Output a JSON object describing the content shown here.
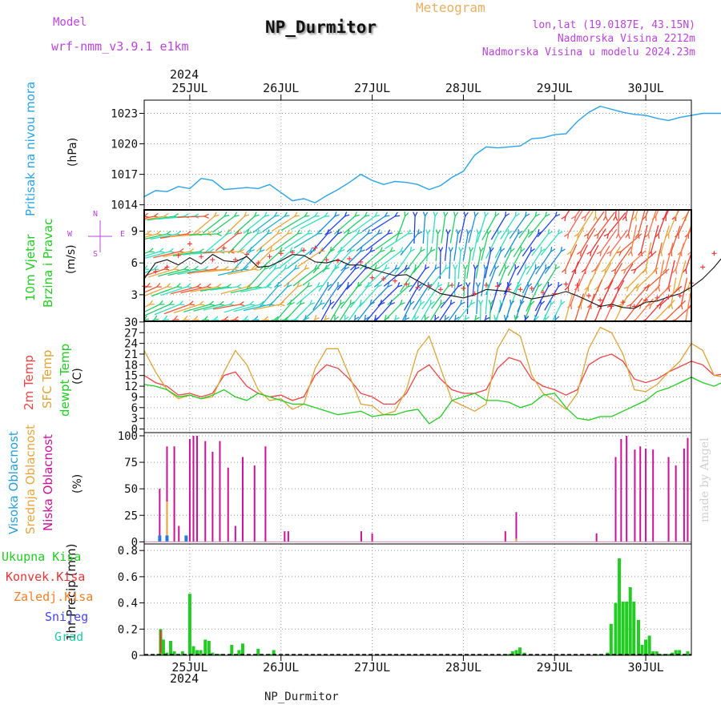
{
  "header": {
    "meteogram": "Meteogram",
    "station_title": "NP_Durmitor",
    "model_label": "Model",
    "model_name": "wrf-nmm_v3.9.1 e1km",
    "lonlat": "lon,lat (19.0187E, 43.15N)",
    "altitude": "Nadmorska Visina 2212m",
    "model_altitude": "Nadmorska Visina u modelu 2024.23m",
    "footer_name": "NP_Durmitor",
    "credit": "made by Angel"
  },
  "colors": {
    "pressure": "#2aa4e6",
    "temp2m": "#ee4444",
    "sfc": "#dda43a",
    "dewpt": "#22cc22",
    "purple": "#bb44dd",
    "low_cloud": "#cc1199",
    "mid_cloud": "#e8a63c",
    "high_cloud": "#2a79d8",
    "total_precip": "#22cc22",
    "conv": "#ee3333",
    "frozen": "#f07d26",
    "snow": "#4444ee",
    "graupel": "#22ccaa"
  },
  "chart_data": [
    {
      "type": "line",
      "panel": "pressure",
      "ylabel": [
        "Pritisak na nivou mora",
        "(hPa)"
      ],
      "ylim": [
        1013.5,
        1024.3
      ],
      "yticks": [
        1014,
        1017,
        1020,
        1023
      ],
      "grid": true,
      "x_ticks": [
        "25JUL",
        "26JUL",
        "27JUL",
        "28JUL",
        "29JUL",
        "30JUL"
      ],
      "x_year": "2024",
      "x_start": 0.5,
      "x_step_hours": 3,
      "x_unit": "day",
      "series": [
        {
          "values": [
            1014.8,
            1015.4,
            1015.3,
            1015.8,
            1015.6,
            1016.6,
            1016.4,
            1015.5,
            1015.6,
            1015.7,
            1015.6,
            1016.0,
            1015.2,
            1014.4,
            1014.6,
            1014.2,
            1014.9,
            1015.5,
            1016.2,
            1017.0,
            1016.4,
            1016.0,
            1016.3,
            1016.2,
            1016.0,
            1015.5,
            1015.9,
            1016.7,
            1017.3,
            1018.9,
            1019.7,
            1019.6,
            1019.7,
            1019.8,
            1020.5,
            1020.6,
            1020.9,
            1021.0,
            1022.2,
            1023.1,
            1023.7,
            1023.4,
            1023.1,
            1022.9,
            1022.8,
            1022.5,
            1022.3,
            1022.6,
            1022.8,
            1023.0,
            1023.0,
            1023.0,
            1022.7,
            1022.8,
            1022.7,
            1022.2,
            1022.0,
            1022.6,
            1022.0,
            1021.9,
            1022.1,
            1021.8,
            1021.5,
            1020.9,
            1020.2
          ]
        }
      ]
    },
    {
      "type": "scatter",
      "panel": "wind",
      "ylabel": [
        "10m Vjetar",
        "Brzina i Pravac",
        "(m/s)"
      ],
      "ylim": [
        0.5,
        11.0
      ],
      "yticks": [
        3,
        6,
        9
      ],
      "grid": true,
      "compass": [
        "N",
        "E",
        "S",
        "W"
      ],
      "series": [
        {
          "name": "speed",
          "values": [
            4.5,
            6.0,
            6.3,
            5.8,
            6.5,
            5.9,
            6.8,
            6.2,
            6.1,
            6.6,
            5.6,
            5.7,
            6.2,
            6.8,
            6.7,
            6.1,
            6.0,
            6.3,
            5.8,
            5.8,
            5.4,
            5.1,
            4.8,
            4.9,
            4.3,
            3.7,
            3.1,
            2.9,
            2.7,
            3.0,
            3.5,
            3.4,
            3.3,
            2.9,
            2.6,
            2.8,
            3.0,
            3.3,
            2.9,
            2.4,
            1.9,
            2.1,
            1.8,
            1.7,
            2.3,
            2.4,
            2.8,
            3.1,
            3.7,
            4.5,
            5.6,
            6.9,
            8.0,
            7.5,
            7.2,
            7.3,
            7.1,
            7.4,
            7.1,
            6.9,
            7.4,
            7.6,
            8.0,
            7.2,
            7.0
          ]
        },
        {
          "name": "gust",
          "values": [
            3.8,
            5.2,
            5.6,
            6.7,
            7.8,
            6.6,
            6.3,
            7.4,
            6.3,
            6.8,
            6.0,
            6.6,
            6.9,
            7.0,
            7.2,
            7.4,
            6.3,
            6.2,
            6.4,
            6.1,
            4.6,
            4.5,
            4.3,
            4.0,
            3.7,
            3.8,
            3.5,
            3.9,
            3.6,
            3.1,
            3.9,
            3.8,
            3.5,
            3.5,
            3.6,
            3.2,
            3.1,
            4.0,
            3.9,
            2.9,
            2.5,
            1.9,
            2.3,
            1.9,
            2.5,
            2.7,
            2.8,
            2.9,
            4.1,
            5.6,
            6.9,
            8.0,
            9.2,
            9.2,
            8.9,
            8.7,
            8.5,
            8.4,
            8.4,
            7.5,
            7.4,
            7.0,
            6.6,
            7.0,
            6.4
          ]
        }
      ]
    },
    {
      "type": "line",
      "panel": "temperature",
      "ylabel": [
        "2m Temp",
        "SFC Temp",
        "dewpt Temp",
        "(C)"
      ],
      "ylim": [
        -1,
        30.2
      ],
      "yticks": [
        0,
        3,
        6,
        9,
        12,
        15,
        18,
        21,
        24,
        27,
        30
      ],
      "grid": true,
      "series": [
        {
          "name": "2m Temp",
          "values": [
            15.0,
            13.0,
            12.0,
            9.5,
            10.0,
            9.0,
            10.0,
            15.0,
            16.0,
            12.0,
            10.0,
            9.0,
            9.5,
            8.0,
            9.0,
            15.0,
            18.0,
            17.0,
            14.0,
            10.0,
            9.0,
            7.0,
            7.0,
            10.0,
            16.0,
            18.0,
            14.0,
            11.0,
            10.0,
            10.0,
            11.0,
            17.0,
            20.0,
            19.0,
            14.0,
            12.0,
            11.0,
            9.5,
            11.0,
            18.0,
            20.0,
            21.0,
            19.0,
            14.0,
            13.0,
            14.0,
            16.0,
            17.5,
            19.0,
            18.0,
            15.0,
            15.5,
            17.0,
            17.5,
            18.5,
            16.5,
            15.0,
            15.5,
            13.5,
            12.0,
            11.0,
            10.5,
            12.5,
            14.5,
            16.5
          ]
        },
        {
          "name": "SFC Temp",
          "values": [
            22.0,
            16.0,
            11.0,
            8.5,
            9.5,
            8.5,
            9.0,
            16.0,
            22.0,
            18.0,
            11.0,
            8.0,
            8.5,
            5.5,
            7.0,
            17.0,
            22.5,
            22.5,
            15.0,
            7.0,
            6.5,
            4.0,
            5.0,
            11.0,
            22.0,
            26.0,
            17.0,
            8.0,
            6.5,
            5.0,
            7.0,
            22.5,
            28.0,
            26.0,
            15.0,
            10.0,
            8.0,
            5.5,
            10.0,
            22.5,
            28.5,
            27.0,
            21.0,
            11.0,
            10.5,
            12.5,
            16.0,
            19.0,
            24.0,
            22.0,
            15.0,
            14.5,
            17.0,
            22.0,
            24.0,
            20.0,
            16.0,
            14.5,
            12.5,
            11.5,
            10.5,
            10.0,
            15.5,
            21.0,
            24.0
          ]
        },
        {
          "name": "dewpt Temp",
          "values": [
            12.5,
            12.0,
            11.0,
            9.0,
            9.5,
            8.5,
            9.5,
            11.0,
            9.0,
            8.0,
            10.0,
            9.0,
            8.0,
            7.0,
            7.0,
            6.0,
            5.0,
            4.0,
            4.5,
            5.0,
            3.5,
            4.0,
            4.0,
            5.0,
            5.5,
            1.5,
            3.5,
            8.0,
            9.0,
            10.0,
            8.0,
            8.0,
            7.5,
            6.0,
            7.0,
            9.5,
            10.0,
            6.0,
            3.0,
            2.5,
            3.5,
            3.5,
            5.0,
            6.5,
            8.0,
            10.5,
            11.5,
            13.0,
            14.5,
            13.0,
            12.0,
            13.5,
            14.0,
            13.0,
            13.5,
            15.0,
            15.5,
            14.5,
            13.0,
            11.5,
            11.0,
            10.0,
            10.5,
            11.0,
            10.5
          ]
        }
      ]
    },
    {
      "type": "bar",
      "panel": "cloud",
      "ylabel": [
        "Visoka Oblacnost",
        "Srednja Oblacnost",
        "Niska Oblacnost",
        "(%)"
      ],
      "ylim": [
        -2,
        103
      ],
      "yticks": [
        0,
        25,
        50,
        75,
        100
      ],
      "grid": true,
      "series": [
        {
          "name": "Niska Oblacnost",
          "x": [
            24.67,
            24.75,
            24.83,
            24.88,
            25.0,
            25.04,
            25.08,
            25.17,
            25.25,
            25.33,
            25.42,
            25.5,
            25.58,
            25.71,
            25.83,
            26.04,
            26.08,
            26.88,
            27.0,
            28.46,
            28.58,
            29.46,
            29.67,
            29.73,
            29.79,
            29.88,
            29.94,
            30.0,
            30.08,
            30.25,
            30.33,
            30.42,
            30.46
          ],
          "values": [
            50,
            90,
            90,
            15,
            97,
            100,
            100,
            95,
            85,
            95,
            70,
            15,
            80,
            72,
            90,
            10,
            10,
            10,
            8,
            10,
            28,
            8,
            80,
            97,
            100,
            87,
            90,
            88,
            87,
            80,
            72,
            88,
            98
          ]
        },
        {
          "name": "Srednja Oblacnost",
          "x": [
            24.67,
            24.75,
            24.96,
            28.58
          ],
          "values": [
            5,
            38,
            5,
            3
          ]
        },
        {
          "name": "Visoka Oblacnost",
          "x": [
            24.67,
            24.75,
            24.96
          ],
          "values": [
            6,
            6,
            6
          ]
        }
      ]
    },
    {
      "type": "bar",
      "panel": "precip",
      "ylabel": [
        "1hr Precip (mm)"
      ],
      "ylim": [
        0,
        0.85
      ],
      "yticks": [
        0,
        0.2,
        0.4,
        0.6,
        0.8
      ],
      "grid": true,
      "legend": [
        "Ukupna Kisa",
        "Konvek.Kisa",
        "Zaledj.Kisa",
        "Snijeg",
        "Grad"
      ],
      "series": [
        {
          "name": "Ukupna Kisa",
          "x": [
            24.65,
            24.68,
            24.71,
            24.75,
            24.79,
            24.83,
            24.92,
            25.0,
            25.04,
            25.08,
            25.12,
            25.17,
            25.21,
            25.25,
            25.33,
            25.46,
            25.54,
            25.58,
            25.75,
            25.79,
            25.88,
            25.92,
            28.5,
            28.54,
            28.58,
            28.62,
            28.67,
            29.46,
            29.58,
            29.62,
            29.67,
            29.71,
            29.75,
            29.79,
            29.83,
            29.87,
            29.92,
            29.96,
            30.0,
            30.04,
            30.08,
            30.12,
            30.17,
            30.25,
            30.29,
            30.33,
            30.37,
            30.42,
            30.46
          ],
          "values": [
            0.01,
            0.2,
            0.12,
            0.02,
            0.11,
            0.03,
            0.03,
            0.47,
            0.07,
            0.04,
            0.04,
            0.12,
            0.11,
            0.02,
            0.01,
            0.08,
            0.04,
            0.09,
            0.05,
            0.01,
            0.01,
            0.04,
            0.01,
            0.03,
            0.04,
            0.06,
            0.02,
            0.01,
            0.02,
            0.24,
            0.4,
            0.74,
            0.41,
            0.41,
            0.52,
            0.41,
            0.27,
            0.08,
            0.12,
            0.15,
            0.03,
            0.03,
            0.01,
            0.01,
            0.02,
            0.04,
            0.04,
            0.01,
            0.03
          ]
        },
        {
          "name": "Konvek.Kisa",
          "x": [
            24.68
          ],
          "values": [
            0.19
          ]
        },
        {
          "name": "Zaledj.Kisa",
          "x": [
            24.68
          ],
          "values": [
            0.02
          ]
        },
        {
          "name": "Snijeg",
          "x": [],
          "values": []
        },
        {
          "name": "Grad",
          "x": [],
          "values": []
        }
      ]
    }
  ]
}
